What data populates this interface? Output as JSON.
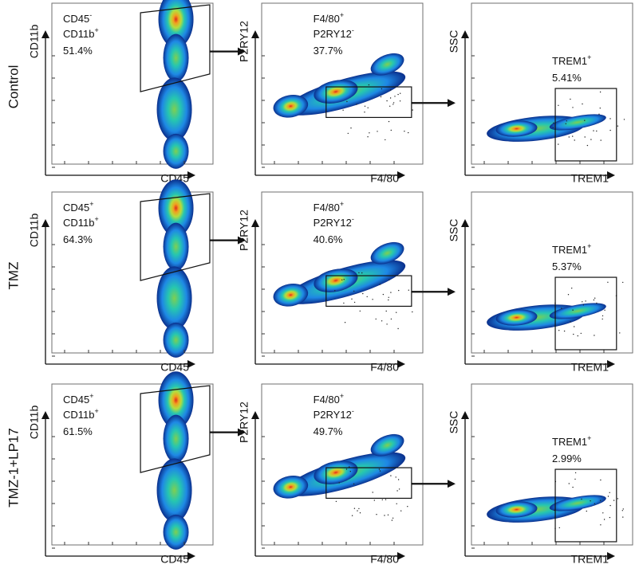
{
  "chart_data": {
    "type": "scatter",
    "subtype": "flow-cytometry-density",
    "rows": [
      "Control",
      "TMZ",
      "TMZ-1+LP17"
    ],
    "columns": [
      {
        "xlabel": "CD45",
        "ylabel": "CD11b"
      },
      {
        "xlabel": "F4/80",
        "ylabel": "P2RY12"
      },
      {
        "xlabel": "TREM1",
        "ylabel": "SSC"
      }
    ],
    "panels": [
      {
        "row": "Control",
        "col": 0,
        "gate_lines": [
          "CD45",
          "CD11b"
        ],
        "gate_sups": [
          "-",
          "+"
        ],
        "percent": "51.4%"
      },
      {
        "row": "Control",
        "col": 1,
        "gate_lines": [
          "F4/80",
          "P2RY12"
        ],
        "gate_sups": [
          "+",
          "-"
        ],
        "percent": "37.7%"
      },
      {
        "row": "Control",
        "col": 2,
        "gate_lines": [
          "TREM1"
        ],
        "gate_sups": [
          "+"
        ],
        "percent": "5.41%"
      },
      {
        "row": "TMZ",
        "col": 0,
        "gate_lines": [
          "CD45",
          "CD11b"
        ],
        "gate_sups": [
          "+",
          "+"
        ],
        "percent": "64.3%"
      },
      {
        "row": "TMZ",
        "col": 1,
        "gate_lines": [
          "F4/80",
          "P2RY12"
        ],
        "gate_sups": [
          "+",
          "-"
        ],
        "percent": "40.6%"
      },
      {
        "row": "TMZ",
        "col": 2,
        "gate_lines": [
          "TREM1"
        ],
        "gate_sups": [
          "+"
        ],
        "percent": "5.37%"
      },
      {
        "row": "TMZ-1+LP17",
        "col": 0,
        "gate_lines": [
          "CD45",
          "CD11b"
        ],
        "gate_sups": [
          "+",
          "+"
        ],
        "percent": "61.5%"
      },
      {
        "row": "TMZ-1+LP17",
        "col": 1,
        "gate_lines": [
          "F4/80",
          "P2RY12"
        ],
        "gate_sups": [
          "+",
          "-"
        ],
        "percent": "49.7%"
      },
      {
        "row": "TMZ-1+LP17",
        "col": 2,
        "gate_lines": [
          "TREM1"
        ],
        "gate_sups": [
          "+"
        ],
        "percent": "2.99%"
      }
    ],
    "grid": false,
    "legend": "none"
  },
  "colors": {
    "density_low": "#0a2f8c",
    "density_mid_low": "#1e88e5",
    "density_mid": "#26c6b0",
    "density_mid_high": "#b5dd3c",
    "density_high": "#f0a020",
    "density_peak": "#e0281a"
  }
}
